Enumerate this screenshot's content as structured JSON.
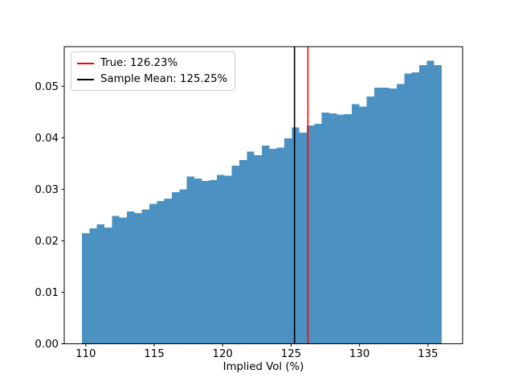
{
  "figure": {
    "background": "#ffffff"
  },
  "chart_data": {
    "type": "histogram",
    "title": "",
    "xlabel": "Implied Vol (%)",
    "ylabel": "",
    "bar_color": "#4B92C3",
    "grid": false,
    "legend_position": "upper left",
    "xlim": [
      108.43,
      137.53
    ],
    "ylim": [
      0,
      0.0577
    ],
    "xticks": [
      110,
      115,
      120,
      125,
      130,
      135
    ],
    "xtick_labels": [
      "110",
      "115",
      "120",
      "125",
      "130",
      "135"
    ],
    "yticks": [
      0,
      0.01,
      0.02,
      0.03,
      0.04,
      0.05
    ],
    "ytick_labels": [
      "0.00",
      "0.01",
      "0.02",
      "0.03",
      "0.04",
      "0.05"
    ],
    "bin_start": 109.72,
    "bin_width": 0.5475,
    "densities": [
      0.0215,
      0.0224,
      0.0232,
      0.0226,
      0.0248,
      0.0245,
      0.0257,
      0.0254,
      0.0261,
      0.0272,
      0.0277,
      0.0282,
      0.0294,
      0.03,
      0.0325,
      0.0321,
      0.0316,
      0.0318,
      0.0328,
      0.0326,
      0.0346,
      0.0357,
      0.0373,
      0.0366,
      0.0385,
      0.0379,
      0.0381,
      0.0399,
      0.042,
      0.041,
      0.0424,
      0.0427,
      0.0449,
      0.0447,
      0.0445,
      0.0446,
      0.0465,
      0.0461,
      0.048,
      0.0497,
      0.0497,
      0.0496,
      0.0504,
      0.0525,
      0.0527,
      0.0541,
      0.055,
      0.0541
    ],
    "vlines": [
      {
        "x": 126.23,
        "color": "#ff0000",
        "label": "True: 126.23%"
      },
      {
        "x": 125.25,
        "color": "#000000",
        "label": "Sample Mean: 125.25%"
      }
    ],
    "legend": [
      {
        "label": "True: 126.23%",
        "color": "#ff0000"
      },
      {
        "label": "Sample Mean: 125.25%",
        "color": "#000000"
      }
    ]
  }
}
